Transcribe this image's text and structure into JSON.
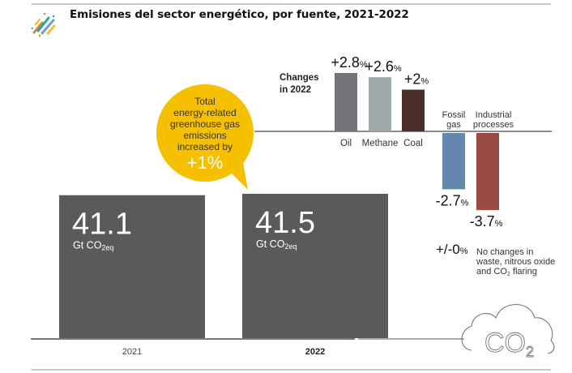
{
  "header": {
    "title": "Emisiones del sector energético, por fuente, 2021-2022",
    "logo_icon": "diagonal-stripes-logo-icon"
  },
  "colors": {
    "total_bar": "#5a5a5a",
    "oil": "#76727a",
    "methane": "#a0aaaa",
    "coal": "#4a2e2a",
    "fossil_gas": "#6487ad",
    "industrial_processes": "#9a4c44",
    "bubble": "#f5c000",
    "axis": "#666666"
  },
  "chart_data": [
    {
      "type": "bar",
      "title": "Total energy-related greenhouse gas emissions",
      "categories": [
        "2021",
        "2022"
      ],
      "values": [
        41.1,
        41.5
      ],
      "value_labels": [
        "41.1",
        "41.5"
      ],
      "unit_label": "Gt CO",
      "unit_sub": "2eq",
      "ylim": [
        0,
        41.5
      ],
      "grid": false,
      "bold_category": "2022"
    },
    {
      "type": "bar",
      "title": "Changes in 2022",
      "title_lines": [
        "Changes",
        "in 2022"
      ],
      "categories": [
        "Oil",
        "Methane",
        "Coal",
        "Fossil gas",
        "Industrial processes"
      ],
      "category_lines": [
        [
          "Oil"
        ],
        [
          "Methane"
        ],
        [
          "Coal"
        ],
        [
          "Fossil",
          "gas"
        ],
        [
          "Industrial",
          "processes"
        ]
      ],
      "values": [
        2.8,
        2.6,
        2.0,
        -2.7,
        -3.7
      ],
      "value_labels": [
        "+2.8",
        "+2.6",
        "+2",
        "-2.7",
        "-3.7"
      ],
      "unit": "%",
      "ylim": [
        -3.7,
        2.8
      ],
      "grid": false
    }
  ],
  "callout": {
    "lines": [
      "Total",
      "energy-related",
      "greenhouse gas",
      "emissions",
      "increased by"
    ],
    "value": "+1%"
  },
  "no_change_note": {
    "value": "+/-0",
    "unit": "%",
    "lines": [
      "No changes in",
      "waste, nitrous oxide",
      "and CO"
    ],
    "line3_sub": "2",
    "line3_tail": " flaring"
  },
  "cloud": {
    "icon": "co2-cloud-icon",
    "text": "CO",
    "sub": "2"
  }
}
